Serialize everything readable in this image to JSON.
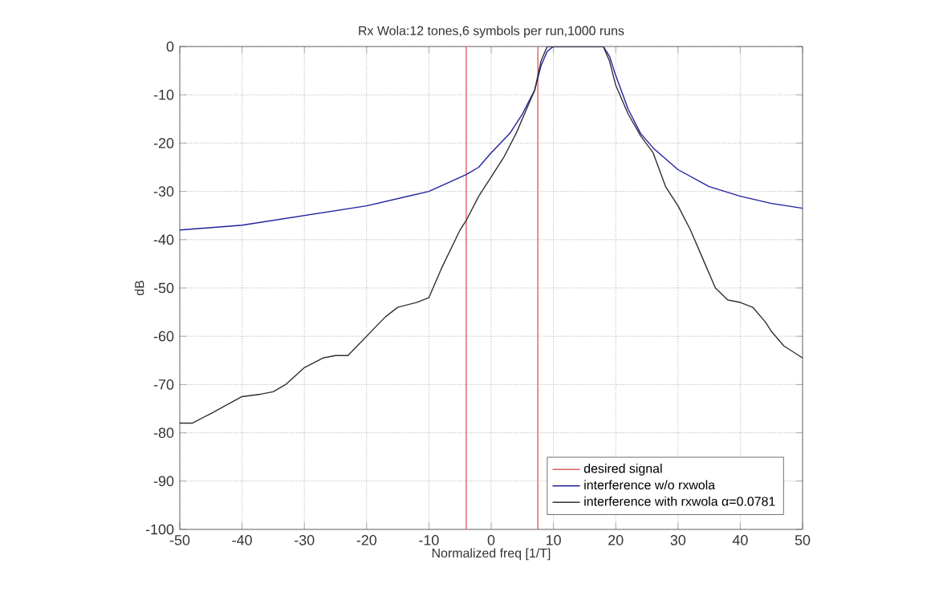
{
  "chart_data": {
    "type": "line",
    "title": "Rx Wola:12 tones,6 symbols per run,1000 runs",
    "xlabel": "Normalized freq [1/T]",
    "ylabel": "dB",
    "xlim": [
      -50,
      50
    ],
    "ylim": [
      -100,
      0
    ],
    "xticks": [
      -50,
      -40,
      -30,
      -20,
      -10,
      0,
      10,
      20,
      30,
      40,
      50
    ],
    "yticks": [
      -100,
      -90,
      -80,
      -70,
      -60,
      -50,
      -40,
      -30,
      -20,
      -10,
      0
    ],
    "grid": true,
    "legend": "bottom right",
    "line_style": "solid",
    "marker": "none",
    "series": [
      {
        "name": "desired signal",
        "color": "#e06060",
        "x": [
          -4,
          -4,
          null,
          7.5,
          7.5
        ],
        "values": [
          -100,
          0,
          null,
          0,
          -100
        ]
      },
      {
        "name": "interference w/o rxwola",
        "color": "#2020a0",
        "x": [
          -50,
          -40,
          -30,
          -20,
          -10,
          -4,
          -2,
          0,
          3,
          5,
          7,
          8,
          9,
          10,
          12,
          15,
          18,
          19,
          20,
          22,
          24,
          26,
          30,
          35,
          40,
          45,
          50
        ],
        "values": [
          -38,
          -37,
          -35,
          -33,
          -30,
          -26.5,
          -25,
          -22,
          -18,
          -14,
          -9,
          -4,
          -1,
          0,
          0,
          0,
          0,
          -2,
          -6,
          -13,
          -18,
          -21,
          -25.5,
          -29,
          -31,
          -32.5,
          -33.5
        ]
      },
      {
        "name": "interference with rxwola α=0.0781",
        "color": "#303030",
        "x": [
          -50,
          -48,
          -45,
          -40,
          -37,
          -35,
          -33,
          -30,
          -27,
          -25,
          -23,
          -20,
          -17,
          -15,
          -12,
          -10,
          -8,
          -5,
          -4,
          -2,
          0,
          2,
          4,
          6,
          7,
          8,
          9,
          10,
          13,
          18,
          19,
          20,
          22,
          24,
          26,
          28,
          30,
          32,
          34,
          36,
          38,
          40,
          42,
          44,
          45,
          47,
          50
        ],
        "values": [
          -78,
          -78,
          -76,
          -72.5,
          -72,
          -71.5,
          -70,
          -66.5,
          -64.5,
          -64,
          -64,
          -60,
          -56,
          -54,
          -53,
          -52,
          -46,
          -38,
          -36,
          -31,
          -27,
          -23,
          -18,
          -12,
          -9,
          -3,
          0,
          0,
          0,
          0,
          -3,
          -8,
          -14,
          -18.5,
          -22,
          -29,
          -33,
          -38,
          -44,
          -50,
          -52.5,
          -53,
          -54,
          -57,
          -59,
          -62,
          -64.5
        ]
      }
    ]
  }
}
